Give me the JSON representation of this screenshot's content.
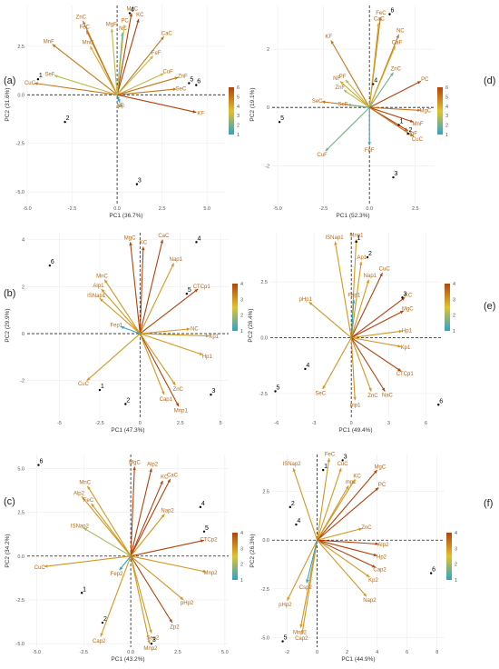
{
  "palette": {
    "low": "#2aa5c9",
    "mid": "#e2c22b",
    "high": "#b2430c",
    "label": "#b06a1c"
  },
  "chart_data": [
    {
      "panel": "(a)",
      "type": "scatter",
      "xlabel": "PC1 (36.7%)",
      "ylabel": "PC2 (31.6%)",
      "xlim": [
        -5,
        6
      ],
      "ylim": [
        -5.6,
        4.6
      ],
      "xticks": [
        -5,
        -2.5,
        0,
        2.5,
        5
      ],
      "xtick_labels": [
        "-5.0",
        "-2.5",
        "0.0",
        "2.5",
        "5.0"
      ],
      "yticks": [
        -5,
        -2.5,
        0,
        2.5
      ],
      "ytick_labels": [
        "-5.0",
        "-2.5",
        "0.0",
        "2.5"
      ],
      "legend": {
        "ticks": [
          1,
          2,
          3,
          4,
          5,
          6
        ]
      },
      "observations": [
        {
          "label": "1",
          "x": -4.4,
          "y": 0.8
        },
        {
          "label": "2",
          "x": -2.9,
          "y": -1.4
        },
        {
          "label": "3",
          "x": 1.1,
          "y": -4.6
        },
        {
          "label": "4",
          "x": 0.7,
          "y": 4.2
        },
        {
          "label": "5",
          "x": 4.0,
          "y": 0.6
        },
        {
          "label": "6",
          "x": 4.4,
          "y": 0.5
        }
      ],
      "loadings": [
        {
          "label": "MgC",
          "x": 0.8,
          "y": 4.2,
          "c": 6
        },
        {
          "label": "KC",
          "x": 1.2,
          "y": 3.9,
          "c": 6
        },
        {
          "label": "ZnC",
          "x": -1.9,
          "y": 3.8,
          "c": 5
        },
        {
          "label": "FeC",
          "x": -1.7,
          "y": 3.3,
          "c": 5
        },
        {
          "label": "MnF",
          "x": -3.6,
          "y": 2.6,
          "c": 5
        },
        {
          "label": "MnC",
          "x": -1.5,
          "y": 2.5,
          "c": 4
        },
        {
          "label": "CaC",
          "x": 2.6,
          "y": 3.0,
          "c": 5
        },
        {
          "label": "FeF",
          "x": 2.0,
          "y": 2.0,
          "c": 3
        },
        {
          "label": "CuF",
          "x": 2.6,
          "y": 1.1,
          "c": 3
        },
        {
          "label": "ZnF",
          "x": 3.4,
          "y": 0.9,
          "c": 5
        },
        {
          "label": "SeC",
          "x": 3.3,
          "y": 0.3,
          "c": 5
        },
        {
          "label": "KF",
          "x": 4.4,
          "y": -0.9,
          "c": 6
        },
        {
          "label": "CuC",
          "x": -4.6,
          "y": 0.6,
          "c": 5
        },
        {
          "label": "SeF",
          "x": -3.5,
          "y": 1.0,
          "c": 3
        },
        {
          "label": "MgF",
          "x": -0.3,
          "y": 3.4,
          "c": 3
        },
        {
          "label": "NC",
          "x": 0.3,
          "y": 3.2,
          "c": 2
        },
        {
          "label": "PC",
          "x": 0.4,
          "y": 3.6,
          "c": 3
        },
        {
          "label": "NF",
          "x": 0.1,
          "y": -0.3,
          "c": 1
        },
        {
          "label": "PF",
          "x": 0.15,
          "y": -0.4,
          "c": 1
        }
      ]
    },
    {
      "panel": "(d)",
      "type": "scatter",
      "xlabel": "PC1 (52.3%)",
      "ylabel": "PC2 (19.1%)",
      "xlim": [
        -5.3,
        3.5
      ],
      "ylim": [
        -3.3,
        3.5
      ],
      "xticks": [
        -5,
        -2.5,
        0,
        2.5
      ],
      "xtick_labels": [
        "-5.0",
        "-2.5",
        "0.0",
        "2.5"
      ],
      "yticks": [
        -2,
        0,
        2
      ],
      "ytick_labels": [
        "-2",
        "0",
        "2"
      ],
      "legend": {
        "ticks": [
          1,
          2,
          3,
          4,
          5,
          6
        ]
      },
      "observations": [
        {
          "label": "1",
          "x": 1.6,
          "y": -0.6
        },
        {
          "label": "2",
          "x": 2.1,
          "y": -0.9
        },
        {
          "label": "3",
          "x": 1.3,
          "y": -2.4
        },
        {
          "label": "4",
          "x": 0.2,
          "y": 0.8
        },
        {
          "label": "5",
          "x": -4.9,
          "y": -0.5
        },
        {
          "label": "6",
          "x": 1.1,
          "y": 3.2
        }
      ],
      "loadings": [
        {
          "label": "FeC",
          "x": 0.6,
          "y": 3.1,
          "c": 5
        },
        {
          "label": "CaC",
          "x": 0.5,
          "y": 2.9,
          "c": 4
        },
        {
          "label": "NC",
          "x": 1.6,
          "y": 2.5,
          "c": 5
        },
        {
          "label": "KF",
          "x": -2.1,
          "y": 2.3,
          "c": 5
        },
        {
          "label": "CaF",
          "x": 1.4,
          "y": 2.1,
          "c": 4
        },
        {
          "label": "ZnC",
          "x": 1.3,
          "y": 1.2,
          "c": 2
        },
        {
          "label": "PC",
          "x": 2.8,
          "y": 0.9,
          "c": 6
        },
        {
          "label": "NF",
          "x": -1.6,
          "y": 0.9,
          "c": 4
        },
        {
          "label": "PF",
          "x": -1.3,
          "y": 0.95,
          "c": 3
        },
        {
          "label": "ZnF",
          "x": -1.4,
          "y": 0.6,
          "c": 3
        },
        {
          "label": "SeC",
          "x": -2.6,
          "y": 0.2,
          "c": 5
        },
        {
          "label": "SeF",
          "x": -1.2,
          "y": 0.1,
          "c": 2
        },
        {
          "label": "MgC",
          "x": 2.8,
          "y": -0.1,
          "c": 5
        },
        {
          "label": "MnF",
          "x": 2.4,
          "y": -0.5,
          "c": 6
        },
        {
          "label": "MgF",
          "x": 2.1,
          "y": -0.8,
          "c": 6
        },
        {
          "label": "CuC",
          "x": 2.4,
          "y": -1.0,
          "c": 5
        },
        {
          "label": "CuF",
          "x": -2.4,
          "y": -1.5,
          "c": 2
        },
        {
          "label": "FeF",
          "x": 0.0,
          "y": -1.3,
          "c": 1
        }
      ]
    },
    {
      "panel": "(b)",
      "type": "scatter",
      "xlabel": "PC1 (47.3%)",
      "ylabel": "PC2 (29.9%)",
      "xlim": [
        -7,
        5.5
      ],
      "ylim": [
        -3.6,
        4.3
      ],
      "xticks": [
        -5,
        -2.5,
        0,
        2.5,
        5
      ],
      "xtick_labels": [
        "-5",
        "-2.5",
        "0",
        "2.5",
        "5"
      ],
      "yticks": [
        -2,
        0,
        2,
        4
      ],
      "ytick_labels": [
        "-2",
        "0",
        "2",
        "4"
      ],
      "legend": {
        "ticks": [
          1,
          2,
          3,
          4
        ]
      },
      "observations": [
        {
          "label": "1",
          "x": -2.5,
          "y": -2.4
        },
        {
          "label": "2",
          "x": -0.9,
          "y": -3.0
        },
        {
          "label": "3",
          "x": 4.4,
          "y": -2.6
        },
        {
          "label": "4",
          "x": 3.5,
          "y": 3.9
        },
        {
          "label": "5",
          "x": 2.9,
          "y": 1.7
        },
        {
          "label": "6",
          "x": -5.6,
          "y": 2.9
        }
      ],
      "loadings": [
        {
          "label": "MgC",
          "x": -0.6,
          "y": 3.9,
          "c": 4
        },
        {
          "label": "CaC",
          "x": 1.4,
          "y": 4.0,
          "c": 4
        },
        {
          "label": "KC",
          "x": 0.2,
          "y": 3.7,
          "c": 4
        },
        {
          "label": "Nap1",
          "x": 2.1,
          "y": 3.0,
          "c": 3
        },
        {
          "label": "MnC",
          "x": -2.2,
          "y": 2.3,
          "c": 3
        },
        {
          "label": "Alp1",
          "x": -2.4,
          "y": 1.9,
          "c": 3
        },
        {
          "label": "ISNap1",
          "x": -2.5,
          "y": 1.5,
          "c": 3
        },
        {
          "label": "CTCp1",
          "x": 3.6,
          "y": 1.9,
          "c": 4
        },
        {
          "label": "NC",
          "x": 3.1,
          "y": 0.2,
          "c": 3
        },
        {
          "label": "Kp1",
          "x": 4.3,
          "y": -0.1,
          "c": 3
        },
        {
          "label": "Hp1",
          "x": 3.9,
          "y": -0.9,
          "c": 3
        },
        {
          "label": "ZnC",
          "x": 2.2,
          "y": -2.2,
          "c": 3
        },
        {
          "label": "Mnp1",
          "x": 2.4,
          "y": -3.1,
          "c": 4
        },
        {
          "label": "Cap1",
          "x": 1.5,
          "y": -2.6,
          "c": 3
        },
        {
          "label": "CuC",
          "x": -3.3,
          "y": -2.0,
          "c": 3
        },
        {
          "label": "Fep1",
          "x": -1.2,
          "y": 0.3,
          "c": 1
        }
      ]
    },
    {
      "panel": "(e)",
      "type": "scatter",
      "xlabel": "PC1 (49.4%)",
      "ylabel": "PC2 (26.4%)",
      "xlim": [
        -6.5,
        7.2
      ],
      "ylim": [
        -3.6,
        4.7
      ],
      "xticks": [
        -6,
        -3,
        0,
        3,
        6
      ],
      "xtick_labels": [
        "-6",
        "-3",
        "0",
        "3",
        "6"
      ],
      "yticks": [
        -2.5,
        0,
        2.5
      ],
      "ytick_labels": [
        "-2.5",
        "0.0",
        "2.5"
      ],
      "legend": {
        "ticks": [
          1,
          2,
          3,
          4
        ]
      },
      "observations": [
        {
          "label": "1",
          "x": 0.4,
          "y": 4.3
        },
        {
          "label": "2",
          "x": 1.3,
          "y": 3.6
        },
        {
          "label": "3",
          "x": 4.1,
          "y": 1.8
        },
        {
          "label": "4",
          "x": -3.7,
          "y": -1.4
        },
        {
          "label": "5",
          "x": -6.1,
          "y": -2.4
        },
        {
          "label": "6",
          "x": 7.0,
          "y": -3.0
        }
      ],
      "loadings": [
        {
          "label": "ISNap1",
          "x": -1.3,
          "y": 4.3,
          "c": 3
        },
        {
          "label": "Mnp1",
          "x": 0.4,
          "y": 4.4,
          "c": 3
        },
        {
          "label": "Ap1",
          "x": 0.8,
          "y": 3.4,
          "c": 3
        },
        {
          "label": "CuC",
          "x": 2.5,
          "y": 2.9,
          "c": 4
        },
        {
          "label": "Nap1",
          "x": 1.4,
          "y": 2.6,
          "c": 3
        },
        {
          "label": "KC",
          "x": 4.3,
          "y": 1.8,
          "c": 4
        },
        {
          "label": "MgC",
          "x": 4.2,
          "y": 1.2,
          "c": 4
        },
        {
          "label": "Hp1",
          "x": 4.1,
          "y": 0.3,
          "c": 3
        },
        {
          "label": "Kp1",
          "x": 4.0,
          "y": -0.4,
          "c": 3
        },
        {
          "label": "CTCp1",
          "x": 4.0,
          "y": -1.5,
          "c": 4
        },
        {
          "label": "pHp1",
          "x": -3.4,
          "y": 1.6,
          "c": 3
        },
        {
          "label": "SeC",
          "x": -2.3,
          "y": -2.3,
          "c": 3
        },
        {
          "label": "ZnC",
          "x": 1.6,
          "y": -2.4,
          "c": 3
        },
        {
          "label": "NaC",
          "x": 2.7,
          "y": -2.4,
          "c": 4
        },
        {
          "label": "mp1",
          "x": 0.3,
          "y": -2.8,
          "c": 3
        },
        {
          "label": "Fep1",
          "x": 0.2,
          "y": 1.7,
          "c": 1
        }
      ]
    },
    {
      "panel": "(c)",
      "type": "scatter",
      "xlabel": "PC1 (43.2%)",
      "ylabel": "PC2 (34.2%)",
      "xlim": [
        -5.5,
        5.2
      ],
      "ylim": [
        -5.2,
        5.8
      ],
      "xticks": [
        -5,
        -2.5,
        0,
        2.5,
        5
      ],
      "xtick_labels": [
        "-5.0",
        "-2.5",
        "0.0",
        "2.5",
        "5.0"
      ],
      "yticks": [
        -5,
        -2.5,
        0,
        2.5,
        5
      ],
      "ytick_labels": [
        "-5.0",
        "-2.5",
        "0.0",
        "2.5",
        "5.0"
      ],
      "legend": {
        "ticks": [
          1,
          2,
          3,
          4
        ]
      },
      "observations": [
        {
          "label": "1",
          "x": -2.6,
          "y": -2.1
        },
        {
          "label": "2",
          "x": -1.5,
          "y": -3.8
        },
        {
          "label": "3",
          "x": 1.1,
          "y": -5.0
        },
        {
          "label": "4",
          "x": 3.7,
          "y": 2.8
        },
        {
          "label": "5",
          "x": 3.9,
          "y": 1.4
        },
        {
          "label": "6",
          "x": -4.9,
          "y": 5.2
        }
      ],
      "loadings": [
        {
          "label": "MgC",
          "x": 0.2,
          "y": 5.1,
          "c": 4
        },
        {
          "label": "Alp2",
          "x": 1.1,
          "y": 5.0,
          "c": 4
        },
        {
          "label": "KC",
          "x": 1.7,
          "y": 4.3,
          "c": 4
        },
        {
          "label": "CaC",
          "x": 2.1,
          "y": 4.4,
          "c": 4
        },
        {
          "label": "MnC",
          "x": -2.3,
          "y": 4.0,
          "c": 3
        },
        {
          "label": "Alp2",
          "x": -2.6,
          "y": 3.4,
          "c": 3
        },
        {
          "label": "FeC",
          "x": -2.1,
          "y": 3.0,
          "c": 3
        },
        {
          "label": "Nap2",
          "x": 1.8,
          "y": 2.4,
          "c": 3
        },
        {
          "label": "ISNap2",
          "x": -2.5,
          "y": 1.6,
          "c": 2
        },
        {
          "label": "CTCp2",
          "x": 3.9,
          "y": 0.9,
          "c": 4
        },
        {
          "label": "Mnp2",
          "x": 4.0,
          "y": -0.9,
          "c": 3
        },
        {
          "label": "pHp2",
          "x": 2.8,
          "y": -2.5,
          "c": 3
        },
        {
          "label": "Zp2",
          "x": 2.2,
          "y": -3.8,
          "c": 4
        },
        {
          "label": "Sep2",
          "x": 1.1,
          "y": -4.4,
          "c": 3
        },
        {
          "label": "Mnp2",
          "x": 1.0,
          "y": -5.0,
          "c": 3
        },
        {
          "label": "CuC",
          "x": -4.6,
          "y": -0.6,
          "c": 3
        },
        {
          "label": "Cap2",
          "x": -1.6,
          "y": -4.6,
          "c": 3
        },
        {
          "label": "Fep2",
          "x": -0.6,
          "y": -0.8,
          "c": 1
        }
      ]
    },
    {
      "panel": "(f)",
      "type": "scatter",
      "xlabel": "PC1 (44.9%)",
      "ylabel": "PC2 (26.3%)",
      "xlim": [
        -3,
        8.5
      ],
      "ylim": [
        -5.5,
        4.4
      ],
      "xticks": [
        -2,
        0,
        2,
        4,
        6,
        8
      ],
      "xtick_labels": [
        "-2",
        "0",
        "2",
        "4",
        "6",
        "8"
      ],
      "yticks": [
        -5,
        -2.5,
        0,
        2.5
      ],
      "ytick_labels": [
        "-5.0",
        "-2.5",
        "0.0",
        "2.5"
      ],
      "legend": {
        "ticks": [
          1,
          2,
          3,
          4
        ]
      },
      "observations": [
        {
          "label": "1",
          "x": 0.4,
          "y": 3.6
        },
        {
          "label": "2",
          "x": -1.8,
          "y": 1.7
        },
        {
          "label": "3",
          "x": 1.7,
          "y": 4.1
        },
        {
          "label": "4",
          "x": -1.4,
          "y": 0.8
        },
        {
          "label": "5",
          "x": -2.3,
          "y": -5.2
        },
        {
          "label": "6",
          "x": 7.6,
          "y": -1.7
        }
      ],
      "loadings": [
        {
          "label": "FeC",
          "x": 0.8,
          "y": 4.2,
          "c": 3
        },
        {
          "label": "ISNap2",
          "x": -1.6,
          "y": 3.7,
          "c": 3
        },
        {
          "label": "CuC",
          "x": 1.6,
          "y": 3.7,
          "c": 3
        },
        {
          "label": "MgC",
          "x": 4.0,
          "y": 3.6,
          "c": 4
        },
        {
          "label": "KC",
          "x": 2.5,
          "y": 3.1,
          "c": 3
        },
        {
          "label": "mp2",
          "x": 2.1,
          "y": 2.8,
          "c": 3
        },
        {
          "label": "PC",
          "x": 4.1,
          "y": 2.7,
          "c": 4
        },
        {
          "label": "ZnC",
          "x": 3.0,
          "y": 0.6,
          "c": 3
        },
        {
          "label": "Alp2",
          "x": 4.1,
          "y": -0.2,
          "c": 4
        },
        {
          "label": "Hp2",
          "x": 4.0,
          "y": -0.8,
          "c": 4
        },
        {
          "label": "Cap2",
          "x": 3.9,
          "y": -1.4,
          "c": 4
        },
        {
          "label": "Kp2",
          "x": 3.5,
          "y": -1.9,
          "c": 3
        },
        {
          "label": "Nap2",
          "x": 3.3,
          "y": -2.9,
          "c": 3
        },
        {
          "label": "pHp2",
          "x": -2.0,
          "y": -3.1,
          "c": 3
        },
        {
          "label": "Mnp2",
          "x": -1.1,
          "y": -4.5,
          "c": 3
        },
        {
          "label": "Cap2",
          "x": -1.0,
          "y": -4.8,
          "c": 3
        },
        {
          "label": "Csp2",
          "x": -0.7,
          "y": -2.2,
          "c": 1
        }
      ]
    }
  ]
}
